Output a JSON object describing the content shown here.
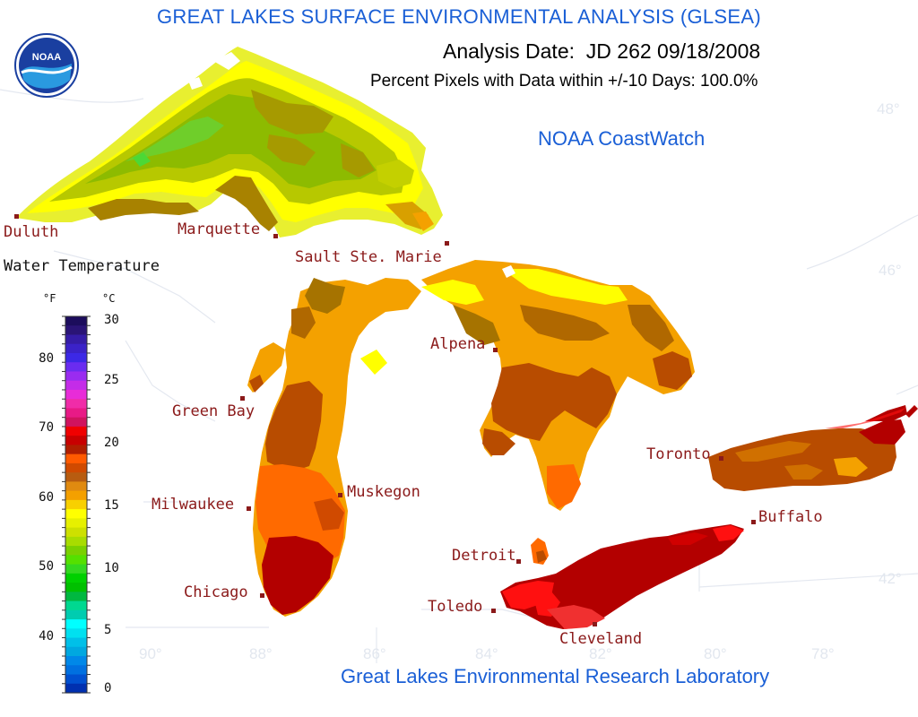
{
  "header": {
    "title": "GREAT LAKES SURFACE ENVIRONMENTAL ANALYSIS (GLSEA)",
    "analysis_date": "Analysis Date:  JD 262 09/18/2008",
    "percent_pixels": "Percent Pixels with Data within +/-10 Days: 100.0%"
  },
  "logo": {
    "text": "NOAA",
    "icon": "noaa-logo"
  },
  "credits": {
    "coastwatch": "NOAA CoastWatch",
    "lab": "Great Lakes Environmental Research Laboratory"
  },
  "legend": {
    "title": "Water Temperature",
    "unit_f": "°F",
    "unit_c": "°C",
    "fahrenheit_ticks": [
      "80",
      "70",
      "60",
      "50",
      "40"
    ],
    "celsius_ticks": [
      "30",
      "25",
      "20",
      "15",
      "10",
      "5",
      "0"
    ],
    "colors_top_to_bottom": [
      "#1c0d5c",
      "#2a1476",
      "#351ca6",
      "#3b22c8",
      "#3c28e6",
      "#6a2cf0",
      "#9a2cf0",
      "#c42ce8",
      "#e82cd8",
      "#f02ca8",
      "#e81a86",
      "#d0135e",
      "#f00000",
      "#c80000",
      "#b01e00",
      "#ff5a00",
      "#d04a00",
      "#b85c10",
      "#e08a10",
      "#f4a000",
      "#f8d000",
      "#ffff00",
      "#e6f000",
      "#cde000",
      "#a8dc00",
      "#7ad000",
      "#55e000",
      "#33d820",
      "#00d000",
      "#00c000",
      "#00b840",
      "#00d890",
      "#00ccb0",
      "#00ffff",
      "#00e0f0",
      "#00c0e8",
      "#00a8e0",
      "#0088e8",
      "#0070e0",
      "#0050d0",
      "#0030b0"
    ]
  },
  "map": {
    "grid_labels": {
      "lat": [
        "48°",
        "46°",
        "42°"
      ],
      "lon": [
        "90°",
        "88°",
        "86°",
        "84°",
        "82°",
        "80°",
        "78°"
      ]
    },
    "cities": [
      "Duluth",
      "Marquette",
      "Sault Ste. Marie",
      "Green Bay",
      "Alpena",
      "Milwaukee",
      "Muskegon",
      "Toronto",
      "Buffalo",
      "Detroit",
      "Chicago",
      "Toledo",
      "Cleveland"
    ],
    "temperature_colors": {
      "superior_cold": "#7fc200",
      "superior_mid": "#a6a000",
      "superior_warm": "#ffff00",
      "superior_edge": "#e8ef30",
      "moderate": "#f4a100",
      "warm": "#b84c00",
      "hot": "#ff5a00",
      "hottest": "#b30000",
      "extreme": "#ff1010"
    }
  }
}
